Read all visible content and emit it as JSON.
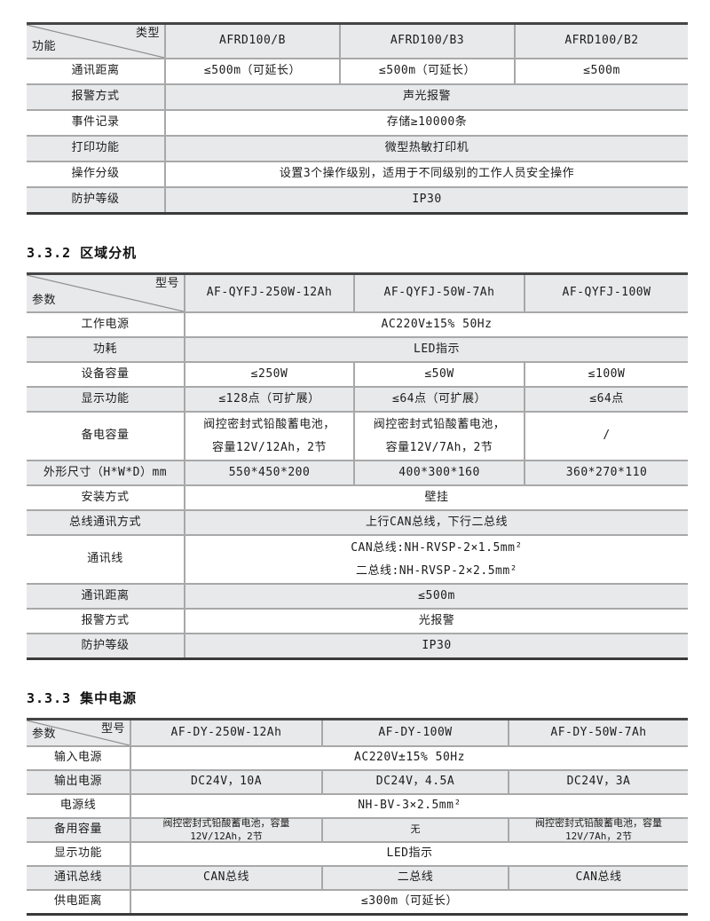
{
  "sections": [
    {
      "heading": null,
      "table": {
        "corner": {
          "top_right": "类型",
          "bottom_left": "功能"
        },
        "columns": [
          "AFRD100/B",
          "AFRD100/B3",
          "AFRD100/B2"
        ],
        "rows": [
          {
            "label": "通讯距离",
            "cells": [
              "≤500m（可延长）",
              "≤500m（可延长）",
              "≤500m"
            ]
          },
          {
            "label": "报警方式",
            "cells": [
              "声光报警"
            ]
          },
          {
            "label": "事件记录",
            "cells": [
              "存储≥10000条"
            ]
          },
          {
            "label": "打印功能",
            "cells": [
              "微型热敏打印机"
            ]
          },
          {
            "label": "操作分级",
            "cells": [
              "设置3个操作级别，适用于不同级别的工作人员安全操作"
            ]
          },
          {
            "label": "防护等级",
            "cells": [
              "IP30"
            ]
          }
        ]
      }
    },
    {
      "heading": "3.3.2 区域分机",
      "table": {
        "corner": {
          "top_right": "型号",
          "bottom_left": "参数"
        },
        "columns": [
          "AF-QYFJ-250W-12Ah",
          "AF-QYFJ-50W-7Ah",
          "AF-QYFJ-100W"
        ],
        "rows": [
          {
            "label": "工作电源",
            "cells": [
              "AC220V±15%  50Hz"
            ]
          },
          {
            "label": "功耗",
            "cells": [
              "LED指示"
            ]
          },
          {
            "label": "设备容量",
            "cells": [
              "≤250W",
              "≤50W",
              "≤100W"
            ]
          },
          {
            "label": "显示功能",
            "cells": [
              "≤128点（可扩展）",
              "≤64点（可扩展）",
              "≤64点"
            ]
          },
          {
            "label": "备电容量",
            "cells": [
              [
                "阀控密封式铅酸蓄电池，",
                "容量12V/12Ah，2节"
              ],
              [
                "阀控密封式铅酸蓄电池，",
                "容量12V/7Ah，2节"
              ],
              "/"
            ]
          },
          {
            "label": "外形尺寸（H*W*D）mm",
            "cells": [
              "550*450*200",
              "400*300*160",
              "360*270*110"
            ]
          },
          {
            "label": "安装方式",
            "cells": [
              "壁挂"
            ]
          },
          {
            "label": "总线通讯方式",
            "cells": [
              "上行CAN总线，下行二总线"
            ]
          },
          {
            "label": "通讯线",
            "cells": [
              [
                "CAN总线:NH-RVSP-2×1.5mm²",
                "二总线:NH-RVSP-2×2.5mm²"
              ]
            ]
          },
          {
            "label": "通讯距离",
            "cells": [
              "≤500m"
            ]
          },
          {
            "label": "报警方式",
            "cells": [
              "光报警"
            ]
          },
          {
            "label": "防护等级",
            "cells": [
              "IP30"
            ]
          }
        ]
      }
    },
    {
      "heading": "3.3.3 集中电源",
      "table": {
        "corner": {
          "top_right": "型号",
          "bottom_left": "参数"
        },
        "columns": [
          "AF-DY-250W-12Ah",
          "AF-DY-100W",
          "AF-DY-50W-7Ah"
        ],
        "rows": [
          {
            "label": "输入电源",
            "cells": [
              "AC220V±15%  50Hz"
            ]
          },
          {
            "label": "输出电源",
            "cells": [
              "DC24V，10A",
              "DC24V，4.5A",
              "DC24V，3A"
            ]
          },
          {
            "label": "电源线",
            "cells": [
              "NH-BV-3×2.5mm²"
            ]
          },
          {
            "label": "备用容量",
            "cells": [
              "阀控密封式铅酸蓄电池，容量12V/12Ah，2节",
              "无",
              "阀控密封式铅酸蓄电池，容量12V/7Ah，2节"
            ]
          },
          {
            "label": "显示功能",
            "cells": [
              "LED指示"
            ]
          },
          {
            "label": "通讯总线",
            "cells": [
              "CAN总线",
              "二总线",
              "CAN总线"
            ]
          },
          {
            "label": "供电距离",
            "cells": [
              "≤300m（可延长）"
            ]
          }
        ]
      }
    }
  ],
  "colors": {
    "shaded_row": "#e8e9ea",
    "separator": "#a8a8a8",
    "table_edge": "#3f3f3f",
    "text": "#1c1c1c"
  }
}
